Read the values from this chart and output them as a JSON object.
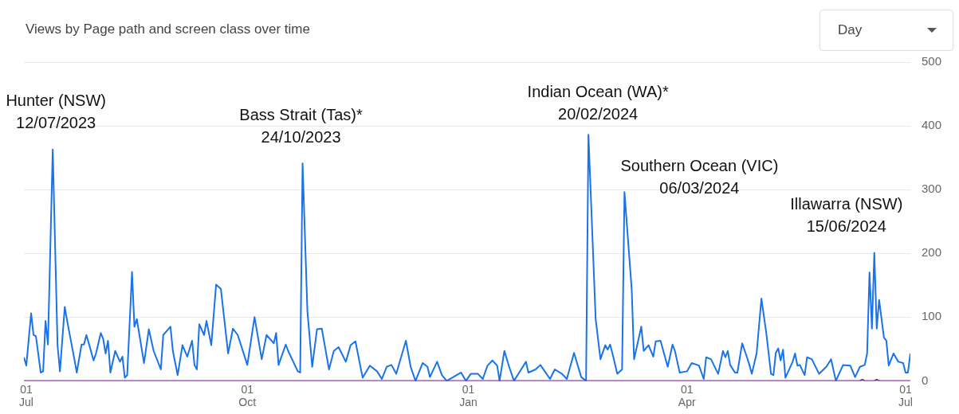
{
  "chart_data": {
    "type": "line",
    "title": "Views by Page path and screen class over time",
    "series": [
      {
        "color": "#1a73e8",
        "x": [
          "2023-06-30",
          "2023-07-01",
          "2023-07-03",
          "2023-07-04",
          "2023-07-05",
          "2023-07-07",
          "2023-07-08",
          "2023-07-09",
          "2023-07-10",
          "2023-07-12",
          "2023-07-14",
          "2023-07-15",
          "2023-07-17",
          "2023-07-18",
          "2023-07-21",
          "2023-07-22",
          "2023-07-24",
          "2023-07-25",
          "2023-07-26",
          "2023-07-27",
          "2023-07-29",
          "2023-07-30",
          "2023-08-01",
          "2023-08-02",
          "2023-08-03",
          "2023-08-04",
          "2023-08-05",
          "2023-08-07",
          "2023-08-09",
          "2023-08-10",
          "2023-08-11",
          "2023-08-12",
          "2023-08-14",
          "2023-08-15",
          "2023-08-16",
          "2023-08-19",
          "2023-08-21",
          "2023-08-23",
          "2023-08-26",
          "2023-08-27",
          "2023-08-30",
          "2023-08-31",
          "2023-09-02",
          "2023-09-04",
          "2023-09-06",
          "2023-09-08",
          "2023-09-09",
          "2023-09-10",
          "2023-09-11",
          "2023-09-13",
          "2023-09-14",
          "2023-09-16",
          "2023-09-18",
          "2023-09-20",
          "2023-09-23",
          "2023-09-25",
          "2023-09-27",
          "2023-10-01",
          "2023-10-04",
          "2023-10-07",
          "2023-10-09",
          "2023-10-12",
          "2023-10-13",
          "2023-10-14",
          "2023-10-17",
          "2023-10-18",
          "2023-10-22",
          "2023-10-23",
          "2023-10-24",
          "2023-10-26",
          "2023-10-28",
          "2023-10-30",
          "2023-11-01",
          "2023-11-04",
          "2023-11-06",
          "2023-11-08",
          "2023-11-11",
          "2023-11-13",
          "2023-11-15",
          "2023-11-18",
          "2023-11-21",
          "2023-11-24",
          "2023-11-26",
          "2023-11-28",
          "2023-11-30",
          "2023-12-02",
          "2023-12-06",
          "2023-12-08",
          "2023-12-10",
          "2023-12-13",
          "2023-12-15",
          "2023-12-16",
          "2023-12-19",
          "2023-12-21",
          "2023-12-23",
          "2023-12-29",
          "2023-12-31",
          "2024-01-02",
          "2024-01-05",
          "2024-01-07",
          "2024-01-09",
          "2024-01-11",
          "2024-01-13",
          "2024-01-14",
          "2024-01-16",
          "2024-01-18",
          "2024-01-20",
          "2024-01-23",
          "2024-01-25",
          "2024-01-26",
          "2024-01-29",
          "2024-01-31",
          "2024-02-04",
          "2024-02-06",
          "2024-02-09",
          "2024-02-11",
          "2024-02-14",
          "2024-02-17",
          "2024-02-19",
          "2024-02-20",
          "2024-02-23",
          "2024-02-25",
          "2024-02-27",
          "2024-02-28",
          "2024-02-29",
          "2024-03-01",
          "2024-03-03",
          "2024-03-05",
          "2024-03-06",
          "2024-03-09",
          "2024-03-10",
          "2024-03-13",
          "2024-03-14",
          "2024-03-16",
          "2024-03-18",
          "2024-03-19",
          "2024-03-21",
          "2024-03-24",
          "2024-03-26",
          "2024-03-27",
          "2024-03-29",
          "2024-04-01",
          "2024-04-03",
          "2024-04-06",
          "2024-04-08",
          "2024-04-09",
          "2024-04-11",
          "2024-04-14",
          "2024-04-16",
          "2024-04-17",
          "2024-04-18",
          "2024-04-19",
          "2024-04-21",
          "2024-04-22",
          "2024-04-24",
          "2024-04-26",
          "2024-04-27",
          "2024-04-28",
          "2024-04-30",
          "2024-05-02",
          "2024-05-04",
          "2024-05-06",
          "2024-05-07",
          "2024-05-08",
          "2024-05-09",
          "2024-05-10",
          "2024-05-11",
          "2024-05-12",
          "2024-05-15",
          "2024-05-16",
          "2024-05-17",
          "2024-05-18",
          "2024-05-20",
          "2024-05-21",
          "2024-05-23",
          "2024-05-26",
          "2024-05-29",
          "2024-05-31",
          "2024-06-02",
          "2024-06-05",
          "2024-06-08",
          "2024-06-10",
          "2024-06-12",
          "2024-06-14",
          "2024-06-15",
          "2024-06-16",
          "2024-06-17",
          "2024-06-18",
          "2024-06-19",
          "2024-06-20",
          "2024-06-22",
          "2024-06-23",
          "2024-06-24",
          "2024-06-26",
          "2024-06-28",
          "2024-06-30",
          "2024-07-01",
          "2024-07-02",
          "2024-07-03"
        ],
        "values": [
          37,
          24,
          106,
          72,
          70,
          13,
          15,
          94,
          57,
          363,
          56,
          15,
          116,
          94,
          34,
          13,
          57,
          57,
          72,
          59,
          32,
          43,
          75,
          66,
          43,
          63,
          13,
          47,
          30,
          38,
          5,
          9,
          171,
          85,
          97,
          28,
          81,
          47,
          18,
          72,
          85,
          47,
          9,
          56,
          38,
          63,
          25,
          18,
          89,
          72,
          94,
          56,
          151,
          144,
          43,
          82,
          72,
          25,
          100,
          34,
          72,
          59,
          75,
          25,
          57,
          47,
          15,
          13,
          341,
          110,
          22,
          81,
          82,
          18,
          47,
          53,
          30,
          56,
          62,
          5,
          24,
          15,
          3,
          22,
          25,
          11,
          63,
          22,
          0,
          28,
          22,
          6,
          30,
          9,
          0,
          13,
          0,
          11,
          11,
          3,
          24,
          32,
          24,
          0,
          47,
          22,
          0,
          18,
          30,
          13,
          18,
          25,
          3,
          18,
          11,
          3,
          44,
          6,
          0,
          386,
          97,
          34,
          56,
          49,
          57,
          43,
          11,
          18,
          296,
          144,
          34,
          85,
          47,
          56,
          38,
          62,
          63,
          22,
          57,
          47,
          13,
          15,
          28,
          24,
          3,
          37,
          34,
          11,
          47,
          37,
          47,
          25,
          13,
          13,
          59,
          37,
          25,
          11,
          43,
          129,
          76,
          11,
          9,
          44,
          51,
          32,
          49,
          5,
          30,
          43,
          24,
          25,
          9,
          37,
          34,
          11,
          22,
          34,
          0,
          25,
          24,
          6,
          22,
          25,
          43,
          170,
          82,
          201,
          82,
          127,
          68,
          63,
          24,
          43,
          30,
          28,
          13,
          13,
          43
        ]
      },
      {
        "color": "#7b1fa2",
        "x": [
          "2023-06-30",
          "2024-06-12",
          "2024-06-13",
          "2024-06-14",
          "2024-06-18",
          "2024-06-19",
          "2024-06-20",
          "2024-07-03"
        ],
        "values": [
          0,
          0,
          2,
          0,
          0,
          2,
          0,
          0
        ]
      }
    ],
    "xlim": [
      "2023-06-30",
      "2024-07-03"
    ],
    "xticks": [
      {
        "value": "2023-07-01",
        "label": "01\nJul"
      },
      {
        "value": "2023-10-01",
        "label": "01\nOct"
      },
      {
        "value": "2024-01-01",
        "label": "01\nJan"
      },
      {
        "value": "2024-04-01",
        "label": "01\nApr"
      },
      {
        "value": "2024-07-01",
        "label": "01\nJul"
      }
    ],
    "ylim": [
      0,
      500
    ],
    "yticks": [
      0,
      100,
      200,
      300,
      400,
      500
    ],
    "grid": "y",
    "legend": false,
    "marker": "none",
    "line_style": "solid",
    "annotations": [
      {
        "text": "Hunter (NSW)\n12/07/2023",
        "x": "2023-07-12",
        "y": 363
      },
      {
        "text": "Bass Strait (Tas)*\n24/10/2023",
        "x": "2023-10-24",
        "y": 341
      },
      {
        "text": "Indian Ocean (WA)*\n20/02/2024",
        "x": "2024-02-20",
        "y": 386
      },
      {
        "text": "Southern Ocean (VIC)\n06/03/2024",
        "x": "2024-03-06",
        "y": 296
      },
      {
        "text": "Illawarra (NSW)\n15/06/2024",
        "x": "2024-06-18",
        "y": 201
      },
      "Day"
    ]
  }
}
